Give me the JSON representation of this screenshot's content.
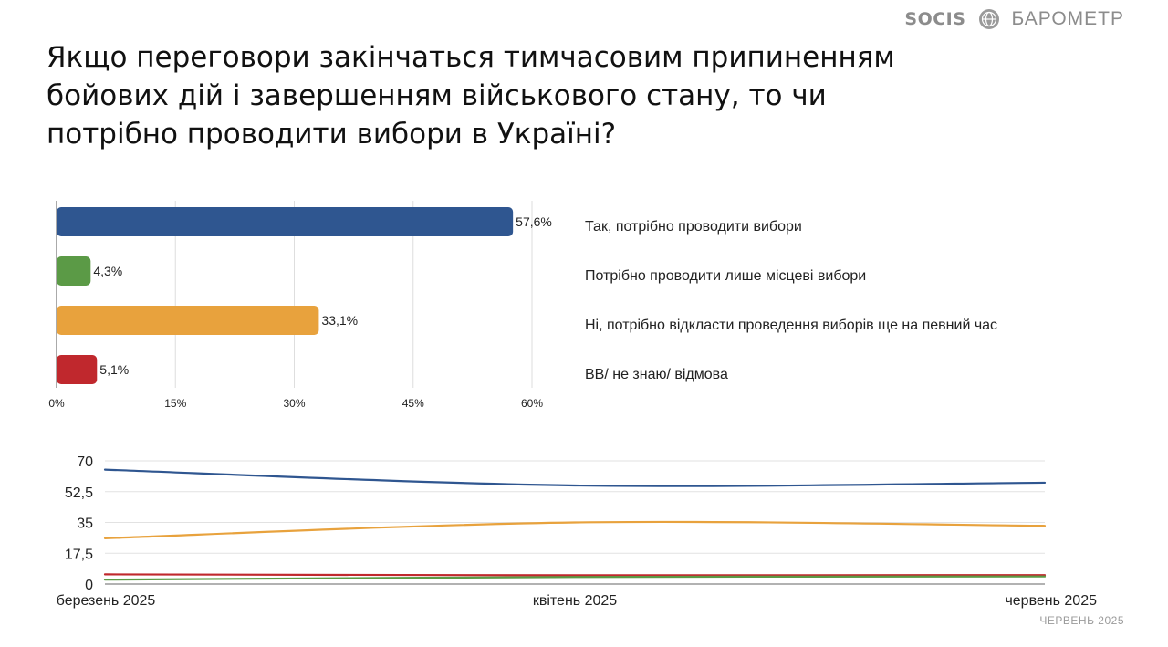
{
  "brand": {
    "logo_text": "SOCIS",
    "emblem_icon": "globe-emblem-icon",
    "name": "БАРОМЕТР"
  },
  "title": "Якщо переговори закінчаться тимчасовим припиненням бойових дій і завершенням військового стану, то чи потрібно проводити вибори в Україні?",
  "footer": {
    "date": "ЧЕРВЕНЬ 2025"
  },
  "chart_data": [
    {
      "type": "bar",
      "orientation": "horizontal",
      "categories": [
        "Так, потрібно проводити вибори",
        "Потрібно проводити лише місцеві вибори",
        "Ні, потрібно відкласти проведення виборів ще на певний час",
        "ВВ/ не знаю/ відмова"
      ],
      "values": [
        57.6,
        4.3,
        33.1,
        5.1
      ],
      "value_labels": [
        "57,6%",
        "4,3%",
        "33,1%",
        "5,1%"
      ],
      "colors": [
        "#2f5690",
        "#5b9a46",
        "#e8a23d",
        "#c0282d"
      ],
      "xlim": [
        0,
        60
      ],
      "xticks": [
        0,
        15,
        30,
        45,
        60
      ],
      "xtick_labels": [
        "0%",
        "15%",
        "30%",
        "45%",
        "60%"
      ],
      "grid": true,
      "legend": "right"
    },
    {
      "type": "line",
      "x": [
        0,
        1,
        2
      ],
      "xtick_labels": [
        "березень 2025",
        "квітень 2025",
        "червень 2025"
      ],
      "ylim": [
        0,
        70
      ],
      "yticks": [
        0,
        17.5,
        35,
        52.5,
        70
      ],
      "ytick_labels": [
        "0",
        "17,5",
        "35",
        "52,5",
        "70"
      ],
      "grid": true,
      "series": [
        {
          "color": "#2f5690",
          "values": [
            65.0,
            56.0,
            57.6
          ]
        },
        {
          "color": "#e8a23d",
          "values": [
            26.0,
            35.0,
            33.1
          ]
        },
        {
          "color": "#c0282d",
          "values": [
            5.5,
            5.0,
            5.1
          ]
        },
        {
          "color": "#5b9a46",
          "values": [
            2.5,
            4.0,
            4.3
          ]
        }
      ]
    }
  ]
}
